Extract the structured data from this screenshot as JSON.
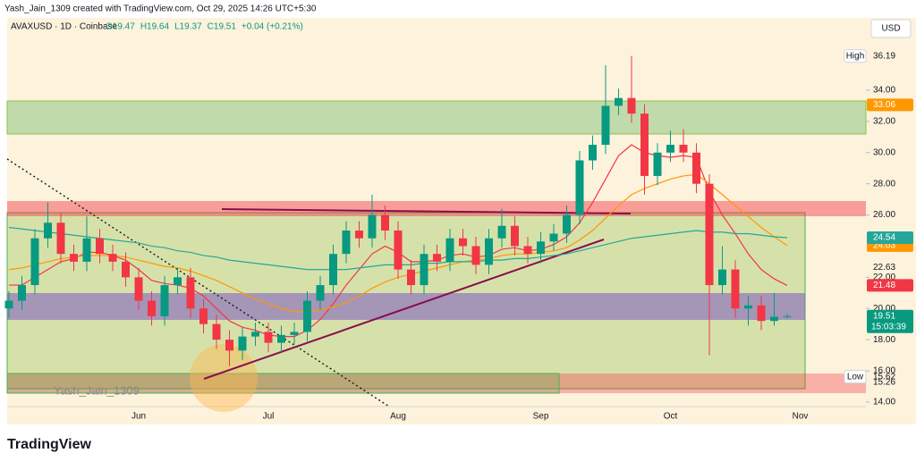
{
  "chart_data": {
    "type": "candlestick",
    "attribution": "Yash_Jain_1309 created with TradingView.com, Oct 29, 2025 14:26 UTC+5:30",
    "legend": {
      "symbol": "AVAXUSD · 1D · Coinbase",
      "ohlc": [
        "O19.47",
        "H19.64",
        "L19.37",
        "C19.51"
      ],
      "change": "+0.04 (+0.21%)"
    },
    "currency": "USD",
    "watermark": "Yash_Jain_1309",
    "brand": "TradingView",
    "up_color": "#089981",
    "down_color": "#f23645",
    "categories": [
      null,
      null,
      null,
      null,
      null,
      null,
      null,
      null,
      null,
      null,
      "Jun",
      null,
      null,
      null,
      null,
      null,
      null,
      null,
      null,
      null,
      "Jul",
      null,
      null,
      null,
      null,
      null,
      null,
      null,
      null,
      null,
      "Aug",
      null,
      null,
      null,
      null,
      null,
      null,
      null,
      null,
      null,
      null,
      "Sep",
      null,
      null,
      null,
      null,
      null,
      null,
      null,
      null,
      null,
      "Oct",
      null,
      null,
      null,
      null,
      null,
      null,
      null,
      null,
      null,
      "Nov"
    ],
    "open": [
      20.0,
      20.5,
      21.5,
      24.5,
      25.5,
      23.5,
      23.0,
      24.5,
      23.5,
      23.0,
      22.0,
      20.5,
      19.5,
      21.5,
      22.0,
      20.0,
      19.0,
      18.0,
      17.3,
      18.2,
      18.5,
      17.8,
      18.3,
      18.5,
      20.5,
      21.5,
      23.5,
      25.0,
      24.5,
      26.0,
      25.0,
      22.5,
      21.5,
      23.5,
      23.0,
      24.5,
      24.0,
      22.8,
      24.5,
      25.3,
      24.0,
      23.5,
      24.3,
      24.8,
      26.0,
      29.5,
      30.5,
      33.0,
      33.5,
      32.5,
      28.5,
      30.0,
      30.5,
      30.0,
      28.0,
      21.5,
      22.5,
      20.0,
      20.2,
      19.2,
      19.47,
      null
    ],
    "high": [
      21.1,
      22.1,
      25.1,
      26.8,
      26.1,
      24.1,
      25.9,
      25.1,
      24.1,
      23.6,
      22.6,
      21.1,
      22.1,
      22.6,
      22.6,
      20.6,
      19.6,
      18.6,
      18.8,
      19.1,
      19.1,
      18.9,
      19.1,
      21.1,
      22.1,
      24.1,
      25.6,
      25.6,
      27.3,
      26.6,
      25.6,
      23.1,
      24.1,
      24.1,
      25.1,
      25.1,
      24.6,
      25.1,
      26.4,
      25.9,
      24.6,
      24.9,
      25.4,
      26.6,
      30.1,
      31.1,
      35.6,
      34.1,
      36.19,
      33.1,
      30.6,
      31.4,
      31.5,
      30.6,
      28.6,
      24.0,
      23.1,
      20.8,
      20.8,
      21.0,
      19.64,
      null
    ],
    "low": [
      19.4,
      19.9,
      20.9,
      23.9,
      22.9,
      22.4,
      22.4,
      22.9,
      22.4,
      21.4,
      19.9,
      18.9,
      18.9,
      20.9,
      19.4,
      18.4,
      17.4,
      16.3,
      16.7,
      17.6,
      17.2,
      17.2,
      17.7,
      17.9,
      19.9,
      20.9,
      22.9,
      23.9,
      23.9,
      24.4,
      21.9,
      20.9,
      20.9,
      22.4,
      22.4,
      23.4,
      22.2,
      22.2,
      23.9,
      23.4,
      22.9,
      22.9,
      23.7,
      24.2,
      25.4,
      28.9,
      29.9,
      32.4,
      31.9,
      27.3,
      27.9,
      29.4,
      29.4,
      27.4,
      17.0,
      20.9,
      19.4,
      18.9,
      18.6,
      18.9,
      19.37,
      null
    ],
    "close": [
      20.5,
      21.5,
      24.5,
      25.5,
      23.5,
      23.0,
      24.5,
      23.5,
      23.0,
      22.0,
      20.5,
      19.5,
      21.5,
      22.0,
      20.0,
      19.0,
      18.0,
      17.3,
      18.2,
      18.5,
      17.8,
      18.3,
      18.5,
      20.5,
      21.5,
      23.5,
      25.0,
      24.5,
      26.0,
      25.0,
      22.5,
      21.5,
      23.5,
      23.0,
      24.5,
      24.0,
      22.8,
      24.5,
      25.3,
      24.0,
      23.5,
      24.3,
      24.8,
      26.0,
      29.5,
      30.5,
      33.0,
      33.5,
      32.5,
      28.5,
      30.0,
      30.5,
      30.0,
      28.0,
      21.5,
      22.5,
      20.0,
      20.2,
      19.2,
      19.47,
      19.51,
      null
    ],
    "series": [
      {
        "color": "#f23645",
        "values": [
          21.5,
          21.5,
          22,
          22.5,
          23,
          23.2,
          23.6,
          23.6,
          23.4,
          23.1,
          22.5,
          21.8,
          21.6,
          21.5,
          21.3,
          20.8,
          20.0,
          19.2,
          18.8,
          18.6,
          18.3,
          18.2,
          18.2,
          18.6,
          19.3,
          20.3,
          21.5,
          22.5,
          23.5,
          24.0,
          23.6,
          23.0,
          23.0,
          23.1,
          23.4,
          23.5,
          23.3,
          23.4,
          23.8,
          23.9,
          23.7,
          23.8,
          24.1,
          24.6,
          25.5,
          26.8,
          28.3,
          29.8,
          30.5,
          30.0,
          29.8,
          29.7,
          29.8,
          29.7,
          27.5,
          26.0,
          24.8,
          23.5,
          22.5,
          21.9,
          21.48,
          null
        ]
      },
      {
        "color": "#ff9800",
        "values": [
          22.5,
          22.6,
          22.8,
          23.0,
          23.2,
          23.3,
          23.4,
          23.4,
          23.4,
          23.3,
          23.1,
          22.9,
          22.7,
          22.6,
          22.4,
          22.1,
          21.8,
          21.4,
          21.0,
          20.6,
          20.3,
          20.0,
          19.8,
          19.8,
          19.9,
          20.1,
          20.4,
          20.8,
          21.3,
          21.7,
          22.0,
          22.2,
          22.4,
          22.6,
          22.8,
          23.0,
          23.1,
          23.2,
          23.4,
          23.5,
          23.5,
          23.6,
          23.7,
          23.9,
          24.4,
          25.0,
          25.8,
          26.6,
          27.3,
          27.7,
          28.0,
          28.3,
          28.5,
          28.6,
          28.0,
          27.3,
          26.6,
          25.9,
          25.2,
          24.6,
          24.03,
          null
        ]
      },
      {
        "color": "#26a69a",
        "values": [
          25.2,
          25.1,
          25.0,
          24.9,
          24.8,
          24.7,
          24.6,
          24.5,
          24.4,
          24.3,
          24.2,
          24.0,
          23.9,
          23.7,
          23.6,
          23.4,
          23.3,
          23.1,
          23.0,
          22.9,
          22.8,
          22.7,
          22.6,
          22.5,
          22.5,
          22.5,
          22.5,
          22.6,
          22.7,
          22.8,
          22.8,
          22.8,
          22.9,
          22.9,
          23.0,
          23.0,
          23.0,
          23.1,
          23.1,
          23.2,
          23.2,
          23.3,
          23.4,
          23.5,
          23.7,
          23.9,
          24.1,
          24.3,
          24.5,
          24.6,
          24.7,
          24.8,
          24.9,
          25.0,
          24.9,
          24.9,
          24.8,
          24.8,
          24.7,
          24.6,
          24.54,
          null
        ]
      }
    ],
    "ylim": [
      12.85,
      38.64
    ],
    "yticks": [
      {
        "value": 14,
        "label": "14.00"
      },
      {
        "value": 16,
        "label": "16.00"
      },
      {
        "value": 18,
        "label": "18.00"
      },
      {
        "value": 20,
        "label": "20.00"
      },
      {
        "value": 22,
        "label": "22.00"
      },
      {
        "value": 26,
        "label": "26.00"
      },
      {
        "value": 28,
        "label": "28.00"
      },
      {
        "value": 30,
        "label": "30.00"
      },
      {
        "value": 32,
        "label": "32.00"
      },
      {
        "value": 34,
        "label": "34.00"
      }
    ],
    "high_label": "High",
    "countdown": "15:03:39",
    "price_labels": [
      {
        "value": 33.06,
        "color": "#ff9800"
      },
      {
        "value": 22.63
      },
      {
        "name": "Low",
        "value": 15.62
      },
      {
        "value": 15.26
      }
    ]
  }
}
